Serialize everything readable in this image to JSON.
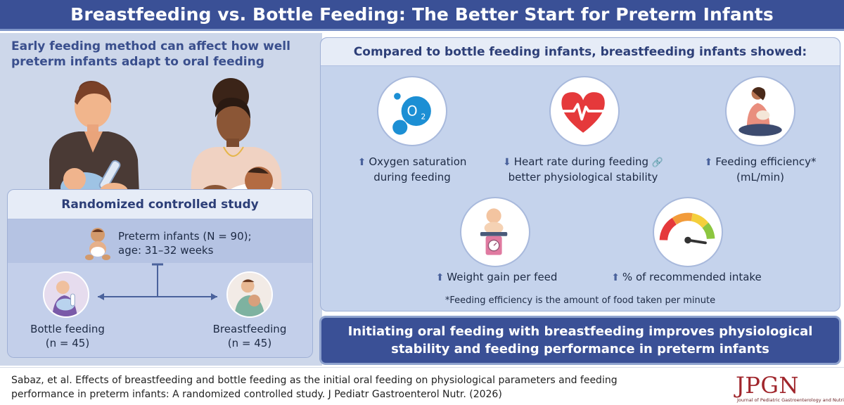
{
  "header": {
    "title": "Breastfeeding vs. Bottle Feeding: The Better Start for Preterm Infants"
  },
  "left": {
    "intro": "Early feeding method can affect how well preterm infants adapt to oral feeding",
    "study": {
      "title": "Randomized controlled study",
      "population_line1": "Preterm infants (N = 90);",
      "population_line2": "age: 31–32 weeks",
      "arms": [
        {
          "label": "Bottle feeding",
          "n": "(n = 45)",
          "icon": "bottle-feeding-icon"
        },
        {
          "label": "Breastfeeding",
          "n": "(n = 45)",
          "icon": "breastfeeding-icon"
        }
      ]
    }
  },
  "right": {
    "title": "Compared to bottle feeding infants, breastfeeding infants showed:",
    "outcomes": [
      {
        "icon": "oxygen-icon",
        "direction": "up",
        "line1": "Oxygen saturation",
        "line2": "during feeding"
      },
      {
        "icon": "heart-rate-icon",
        "direction": "down",
        "line1": "Heart rate during feeding",
        "line2": "better physiological stability",
        "link_icon": "link-icon"
      },
      {
        "icon": "nursing-mother-icon",
        "direction": "up",
        "line1": "Feeding efficiency*",
        "line2": "(mL/min)"
      },
      {
        "icon": "baby-scale-icon",
        "direction": "up",
        "line1": "Weight gain per feed",
        "line2": ""
      },
      {
        "icon": "gauge-icon",
        "direction": "up",
        "line1": "% of recommended intake",
        "line2": ""
      }
    ],
    "footnote": "*Feeding efficiency is the amount of food taken per minute",
    "o2_label": "O",
    "o2_sub": "2"
  },
  "conclusion": {
    "text": "Initiating oral feeding with breastfeeding improves physiological stability and feeding performance in preterm infants"
  },
  "footer": {
    "citation": "Sabaz, et al. Effects of breastfeeding and bottle feeding as the initial oral feeding on physiological parameters and feeding performance in preterm infants: A randomized controlled study. J Pediatr Gastroenterol Nutr. (2026)",
    "logo_text": "JPGN",
    "logo_subtitle": "Journal of Pediatric Gastroenterology and Nutrition"
  },
  "colors": {
    "brand": "#3a5096",
    "panel": "#cdd7ea",
    "accent_red": "#e5393b",
    "logo_red": "#a0262c"
  }
}
